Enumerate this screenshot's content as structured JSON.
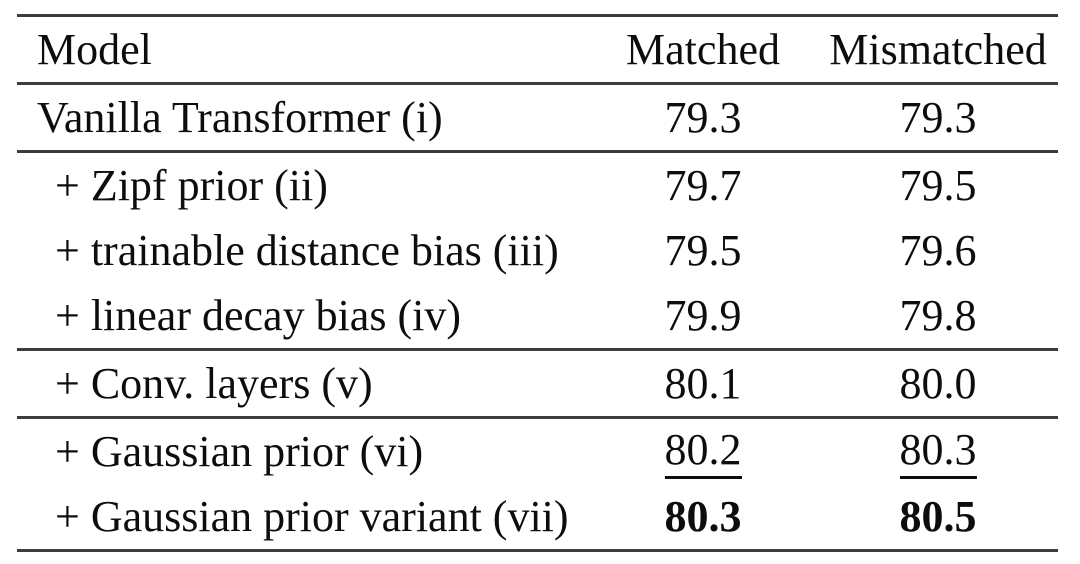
{
  "table": {
    "header": {
      "model": "Model",
      "matched": "Matched",
      "mismatched": "Mismatched"
    },
    "rows": [
      {
        "model": "Vanilla Transformer (i)",
        "matched": "79.3",
        "mismatched": "79.3",
        "indent": false,
        "emphasis": "none"
      },
      {
        "model": "+ Zipf prior (ii)",
        "matched": "79.7",
        "mismatched": "79.5",
        "indent": true,
        "emphasis": "none"
      },
      {
        "model": "+ trainable distance bias (iii)",
        "matched": "79.5",
        "mismatched": "79.6",
        "indent": true,
        "emphasis": "none"
      },
      {
        "model": "+ linear decay bias (iv)",
        "matched": "79.9",
        "mismatched": "79.8",
        "indent": true,
        "emphasis": "none"
      },
      {
        "model": "+ Conv. layers (v)",
        "matched": "80.1",
        "mismatched": "80.0",
        "indent": true,
        "emphasis": "none"
      },
      {
        "model": "+ Gaussian prior (vi)",
        "matched": "80.2",
        "mismatched": "80.3",
        "indent": true,
        "emphasis": "underline"
      },
      {
        "model": "+ Gaussian prior variant (vii)",
        "matched": "80.3",
        "mismatched": "80.5",
        "indent": true,
        "emphasis": "bold"
      }
    ],
    "colors": {
      "text": "#0d0d0d",
      "rule": "#3c3c3c",
      "background": "#ffffff"
    }
  }
}
